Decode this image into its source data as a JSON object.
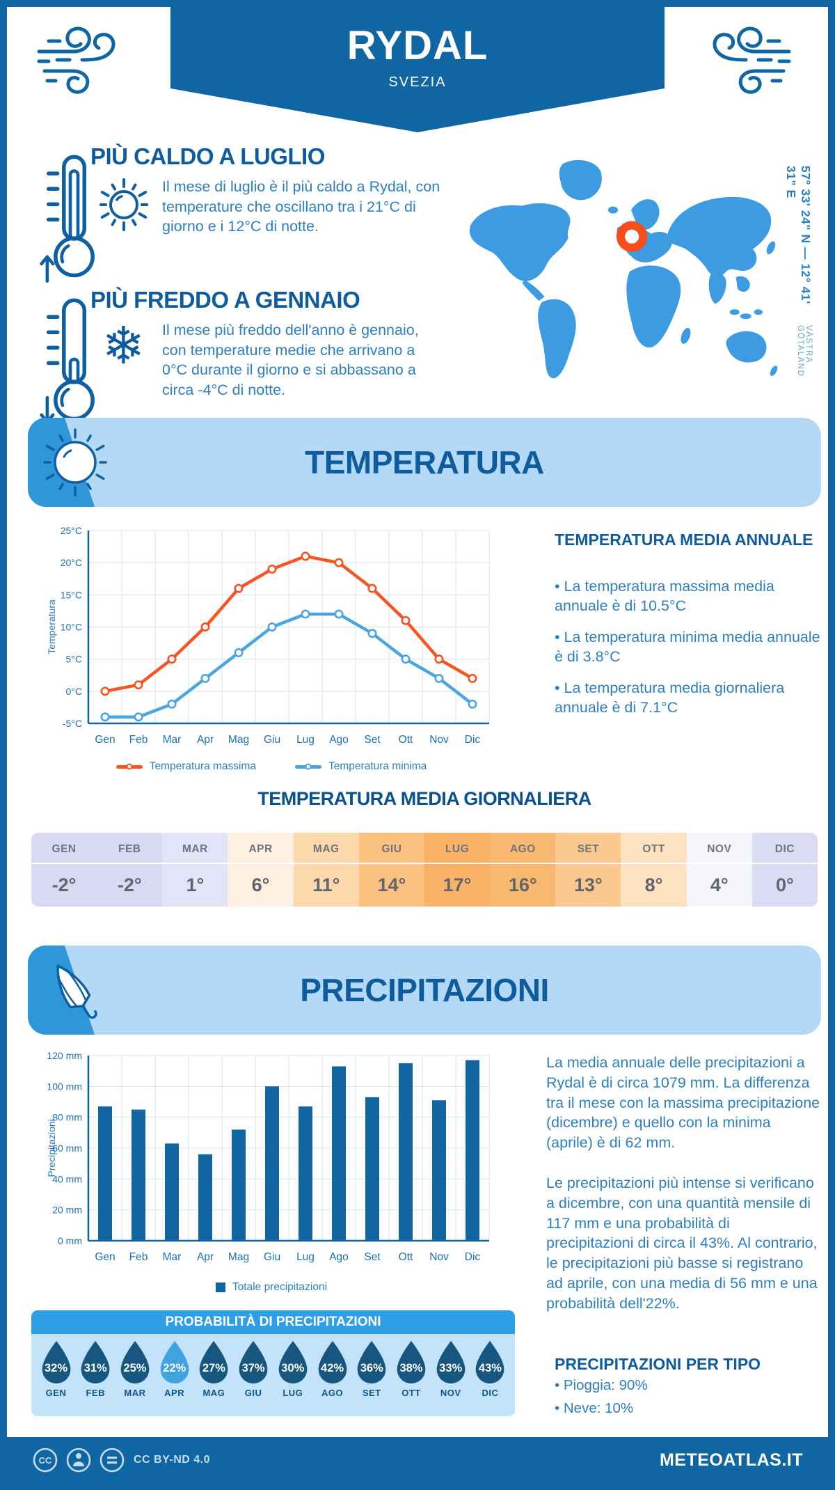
{
  "header": {
    "title": "RYDAL",
    "subtitle": "SVEZIA"
  },
  "map": {
    "coordinates": "57° 33' 24\" N — 12° 41' 31\" E",
    "region": "VÄSTRA GÖTALAND",
    "land_color": "#3d9be2",
    "marker_color": "#f94d1c"
  },
  "highlights": [
    {
      "title": "PIÙ CALDO A LUGLIO",
      "text": "Il mese di luglio è il più caldo a Rydal, con temperature che oscillano tra i 21°C di giorno e i 12°C di notte.",
      "icon": "thermometer-hot-icon + sun-icon"
    },
    {
      "title": "PIÙ FREDDO A GENNAIO",
      "text": "Il mese più freddo dell'anno è gennaio, con temperature medie che arrivano a 0°C durante il giorno e si abbassano a circa -4°C di notte.",
      "icon": "thermometer-cold-icon + snowflake-icon"
    }
  ],
  "temperature_section": {
    "title": "TEMPERATURA",
    "annual": {
      "title": "TEMPERATURA MEDIA ANNUALE",
      "bullets": [
        "• La temperatura massima media annuale è di 10.5°C",
        "• La temperatura minima media annuale è di 3.8°C",
        "• La temperatura media giornaliera annuale è di 7.1°C"
      ]
    },
    "daily_table": {
      "title": "TEMPERATURA MEDIA GIORNALIERA",
      "months": [
        "GEN",
        "FEB",
        "MAR",
        "APR",
        "MAG",
        "GIU",
        "LUG",
        "AGO",
        "SET",
        "OTT",
        "NOV",
        "DIC"
      ],
      "values": [
        "-2°",
        "-2°",
        "1°",
        "6°",
        "11°",
        "14°",
        "17°",
        "16°",
        "13°",
        "8°",
        "4°",
        "0°"
      ],
      "cell_colors": [
        "#d8daf3",
        "#d8daf3",
        "#e3e4f7",
        "#fdf0e0",
        "#fcd8ac",
        "#fac181",
        "#f9b266",
        "#f9b870",
        "#fbc98f",
        "#fde2bf",
        "#f5f5fc",
        "#dadcf4"
      ]
    }
  },
  "chart_data": [
    {
      "type": "line",
      "categories": [
        "Gen",
        "Feb",
        "Mar",
        "Apr",
        "Mag",
        "Giu",
        "Lug",
        "Ago",
        "Set",
        "Ott",
        "Nov",
        "Dic"
      ],
      "series": [
        {
          "name": "Temperatura massima",
          "color": "#f95321",
          "values": [
            0,
            1,
            5,
            10,
            16,
            19,
            21,
            20,
            16,
            11,
            5,
            2
          ]
        },
        {
          "name": "Temperatura minima",
          "color": "#4aa5e0",
          "values": [
            -4,
            -4,
            -2,
            2,
            6,
            10,
            12,
            12,
            9,
            5,
            2,
            -2
          ]
        }
      ],
      "ylabel": "Temperatura",
      "ylim": [
        -5,
        25
      ],
      "ytick_values": [
        -5,
        0,
        5,
        10,
        15,
        20,
        25
      ],
      "yticks": [
        "-5°C",
        "0°C",
        "5°C",
        "10°C",
        "15°C",
        "20°C",
        "25°C"
      ],
      "grid": true,
      "legend_position": "bottom"
    },
    {
      "type": "bar",
      "categories": [
        "Gen",
        "Feb",
        "Mar",
        "Apr",
        "Mag",
        "Giu",
        "Lug",
        "Ago",
        "Set",
        "Ott",
        "Nov",
        "Dic"
      ],
      "series": [
        {
          "name": "Totale precipitazioni",
          "color": "#1065a3",
          "values": [
            87,
            85,
            63,
            56,
            72,
            100,
            87,
            113,
            93,
            115,
            91,
            117
          ]
        }
      ],
      "ylabel": "Precipitazioni",
      "ylim": [
        0,
        120
      ],
      "ytick_values": [
        0,
        20,
        40,
        60,
        80,
        100,
        120
      ],
      "yticks": [
        "0 mm",
        "20 mm",
        "40 mm",
        "60 mm",
        "80 mm",
        "100 mm",
        "120 mm"
      ],
      "grid": true,
      "legend_position": "bottom"
    }
  ],
  "precipitation_section": {
    "title": "PRECIPITAZIONI",
    "paragraphs": [
      "La media annuale delle precipitazioni a Rydal è di circa 1079 mm. La differenza tra il mese con la massima precipitazione (dicembre) e quello con la minima (aprile) è di 62 mm.",
      "Le precipitazioni più intense si verificano a dicembre, con una quantità mensile di 117 mm e una probabilità di precipitazioni di circa il 43%. Al contrario, le precipitazioni più basse si registrano ad aprile, con una media di 56 mm e una probabilità dell'22%."
    ],
    "probability": {
      "title": "PROBABILITÀ DI PRECIPITAZIONI",
      "months": [
        "GEN",
        "FEB",
        "MAR",
        "APR",
        "MAG",
        "GIU",
        "LUG",
        "AGO",
        "SET",
        "OTT",
        "NOV",
        "DIC"
      ],
      "values": [
        "32%",
        "31%",
        "25%",
        "22%",
        "27%",
        "37%",
        "30%",
        "42%",
        "36%",
        "38%",
        "33%",
        "43%"
      ],
      "drop_color": "#17567f",
      "highlight_color": "#3fa3e0",
      "highlight_index": 3
    },
    "types": {
      "title": "PRECIPITAZIONI PER TIPO",
      "bullets": [
        "• Pioggia: 90%",
        "• Neve: 10%"
      ]
    }
  },
  "footer": {
    "cc_label": "CC",
    "license": "CC BY-ND 4.0",
    "site": "METEOATLAS.IT"
  }
}
